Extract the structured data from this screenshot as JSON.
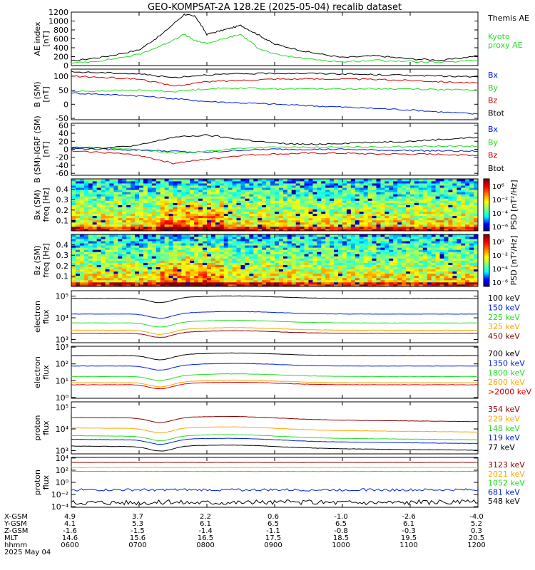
{
  "title": "GEO-KOMPSAT-2A 128.2E (2025-05-04) recalib dataset",
  "colors": {
    "black": "#000000",
    "blue": "#0020d8",
    "green": "#22dd22",
    "red": "#d40000",
    "orange": "#ffa500",
    "darkred": "#8b0000",
    "green2": "#22cc55"
  },
  "time_axis": {
    "x_range": [
      "0600",
      "1200"
    ],
    "ticks": [
      {
        "x_gsm": "4.9",
        "y_gsm": "4.1",
        "z_gsm": "-1.6",
        "mlt": "14.6",
        "hhmm": "0600"
      },
      {
        "x_gsm": "3.7",
        "y_gsm": "5.3",
        "z_gsm": "-1.5",
        "mlt": "15.6",
        "hhmm": "0700"
      },
      {
        "x_gsm": "2.2",
        "y_gsm": "6.1",
        "z_gsm": "-1.4",
        "mlt": "16.5",
        "hhmm": "0800"
      },
      {
        "x_gsm": "0.6",
        "y_gsm": "6.5",
        "z_gsm": "-1.1",
        "mlt": "17.5",
        "hhmm": "0900"
      },
      {
        "x_gsm": "-1.0",
        "y_gsm": "6.5",
        "z_gsm": "-0.8",
        "mlt": "18.5",
        "hhmm": "1000"
      },
      {
        "x_gsm": "-2.6",
        "y_gsm": "6.1",
        "z_gsm": "-0.3",
        "mlt": "19.5",
        "hhmm": "1100"
      },
      {
        "x_gsm": "-4.0",
        "y_gsm": "5.2",
        "z_gsm": "0.3",
        "mlt": "20.5",
        "hhmm": "1200"
      }
    ],
    "row_labels": [
      "X-GSM",
      "Y-GSM",
      "Z-GSM",
      "MLT",
      "hhmm"
    ],
    "date": "2025 May 04"
  },
  "chart_data": [
    {
      "type": "line",
      "ylabel": "AE index\n[nT]",
      "ylim": [
        0,
        1200
      ],
      "yticks": [
        "0",
        "200",
        "400",
        "600",
        "800",
        "1000",
        "1200"
      ],
      "x": [
        "0600",
        "0630",
        "0700",
        "0720",
        "0740",
        "0750",
        "0800",
        "0815",
        "0830",
        "0845",
        "0900",
        "0930",
        "1000",
        "1030",
        "1100",
        "1130",
        "1200"
      ],
      "series": [
        {
          "name": "Themis AE",
          "color": "black",
          "values": [
            100,
            200,
            350,
            700,
            1150,
            1100,
            700,
            800,
            900,
            700,
            480,
            300,
            180,
            220,
            150,
            120,
            220
          ]
        },
        {
          "name": "Kyoto\nproxy AE",
          "color": "green",
          "values": [
            50,
            120,
            250,
            450,
            700,
            550,
            500,
            600,
            700,
            400,
            250,
            150,
            80,
            120,
            90,
            70,
            120
          ]
        }
      ]
    },
    {
      "type": "line",
      "ylabel": "B (SM)\n[nT]",
      "ylim": [
        -55,
        125
      ],
      "yticks": [
        "-50",
        "0",
        "50",
        "100"
      ],
      "x": [
        "0600",
        "0630",
        "0700",
        "0730",
        "0800",
        "0830",
        "0900",
        "0930",
        "1000",
        "1030",
        "1100",
        "1130",
        "1200"
      ],
      "series": [
        {
          "name": "Bx",
          "color": "blue",
          "values": [
            40,
            35,
            30,
            20,
            10,
            5,
            0,
            -5,
            -10,
            -15,
            -20,
            -28,
            -35
          ]
        },
        {
          "name": "By",
          "color": "green",
          "values": [
            45,
            48,
            50,
            45,
            55,
            58,
            55,
            55,
            55,
            55,
            55,
            52,
            50
          ]
        },
        {
          "name": "Bz",
          "color": "red",
          "values": [
            100,
            95,
            90,
            65,
            80,
            85,
            90,
            90,
            90,
            88,
            85,
            80,
            75
          ]
        },
        {
          "name": "Btot",
          "color": "black",
          "values": [
            115,
            112,
            108,
            95,
            105,
            108,
            110,
            110,
            108,
            105,
            103,
            100,
            97
          ]
        }
      ]
    },
    {
      "type": "line",
      "ylabel": "B (SM)-IGRF (SM)\n[nT]",
      "ylim": [
        -65,
        65
      ],
      "yticks": [
        "-60",
        "-40",
        "-20",
        "0",
        "20",
        "40",
        "60"
      ],
      "x": [
        "0600",
        "0630",
        "0700",
        "0730",
        "0800",
        "0830",
        "0900",
        "0930",
        "1000",
        "1030",
        "1100",
        "1130",
        "1200"
      ],
      "series": [
        {
          "name": "Bx",
          "color": "blue",
          "values": [
            2,
            0,
            -2,
            -5,
            -8,
            -2,
            0,
            0,
            0,
            -2,
            -3,
            -4,
            -5
          ]
        },
        {
          "name": "By",
          "color": "green",
          "values": [
            5,
            3,
            0,
            -10,
            -5,
            3,
            5,
            5,
            5,
            6,
            7,
            8,
            8
          ]
        },
        {
          "name": "Bz",
          "color": "red",
          "values": [
            -5,
            -8,
            -15,
            -35,
            -25,
            -15,
            -12,
            -10,
            -10,
            -12,
            -12,
            -13,
            -15
          ]
        },
        {
          "name": "Btot",
          "color": "black",
          "values": [
            5,
            3,
            10,
            30,
            35,
            25,
            15,
            12,
            15,
            18,
            20,
            25,
            30
          ]
        }
      ]
    },
    {
      "type": "heatmap",
      "ylabel": "Bx (SM)\nfreq [Hz]",
      "yticks": [
        "0.1",
        "0.2",
        "0.3",
        "0.4"
      ],
      "colorbar_label": "PSD [nT²/Hz]",
      "colorbar_ticks": [
        "10⁶",
        "10⁻²",
        "10⁻⁴",
        "10⁻⁶"
      ]
    },
    {
      "type": "heatmap",
      "ylabel": "Bz (SM)\nfreq [Hz]",
      "yticks": [
        "0.1",
        "0.2",
        "0.3",
        "0.4"
      ],
      "colorbar_label": "PSD [nT²/Hz]",
      "colorbar_ticks": [
        "10⁰",
        "10⁻²",
        "10⁻⁴",
        "10⁻⁶"
      ]
    },
    {
      "type": "line",
      "ylabel": "electron\nflux",
      "yscale": "log",
      "yticks": [
        "10³",
        "10⁴",
        "10⁵"
      ],
      "series": [
        {
          "name": "100 keV",
          "color": "black"
        },
        {
          "name": "150 keV",
          "color": "blue"
        },
        {
          "name": "225 keV",
          "color": "green"
        },
        {
          "name": "325 keV",
          "color": "orange"
        },
        {
          "name": "450 keV",
          "color": "darkred"
        }
      ]
    },
    {
      "type": "line",
      "ylabel": "electron\nflux",
      "yscale": "log",
      "yticks": [
        "10⁰",
        "10¹",
        "10²",
        "10³"
      ],
      "series": [
        {
          "name": "700 keV",
          "color": "black"
        },
        {
          "name": "1350 keV",
          "color": "blue"
        },
        {
          "name": "1800 keV",
          "color": "green"
        },
        {
          "name": "2600 keV",
          "color": "orange"
        },
        {
          "name": ">2000 keV",
          "color": "red"
        }
      ]
    },
    {
      "type": "line",
      "ylabel": "proton\nflux",
      "yscale": "log",
      "yticks": [
        "10³",
        "10⁴",
        "10⁵"
      ],
      "series": [
        {
          "name": "354 keV",
          "color": "darkred"
        },
        {
          "name": "229 keV",
          "color": "orange"
        },
        {
          "name": "148 keV",
          "color": "green"
        },
        {
          "name": "119 keV",
          "color": "blue"
        },
        {
          "name": "77 keV",
          "color": "black"
        }
      ]
    },
    {
      "type": "line",
      "ylabel": "proton\nflux",
      "yscale": "log",
      "yticks": [
        "10⁻⁴",
        "10⁻²",
        "10⁰",
        "10²",
        "10⁴"
      ],
      "series": [
        {
          "name": "3123 keV",
          "color": "darkred"
        },
        {
          "name": "2021 keV",
          "color": "orange"
        },
        {
          "name": "1052 keV",
          "color": "green"
        },
        {
          "name": "681 keV",
          "color": "blue"
        },
        {
          "name": "548 keV",
          "color": "black"
        }
      ]
    }
  ]
}
